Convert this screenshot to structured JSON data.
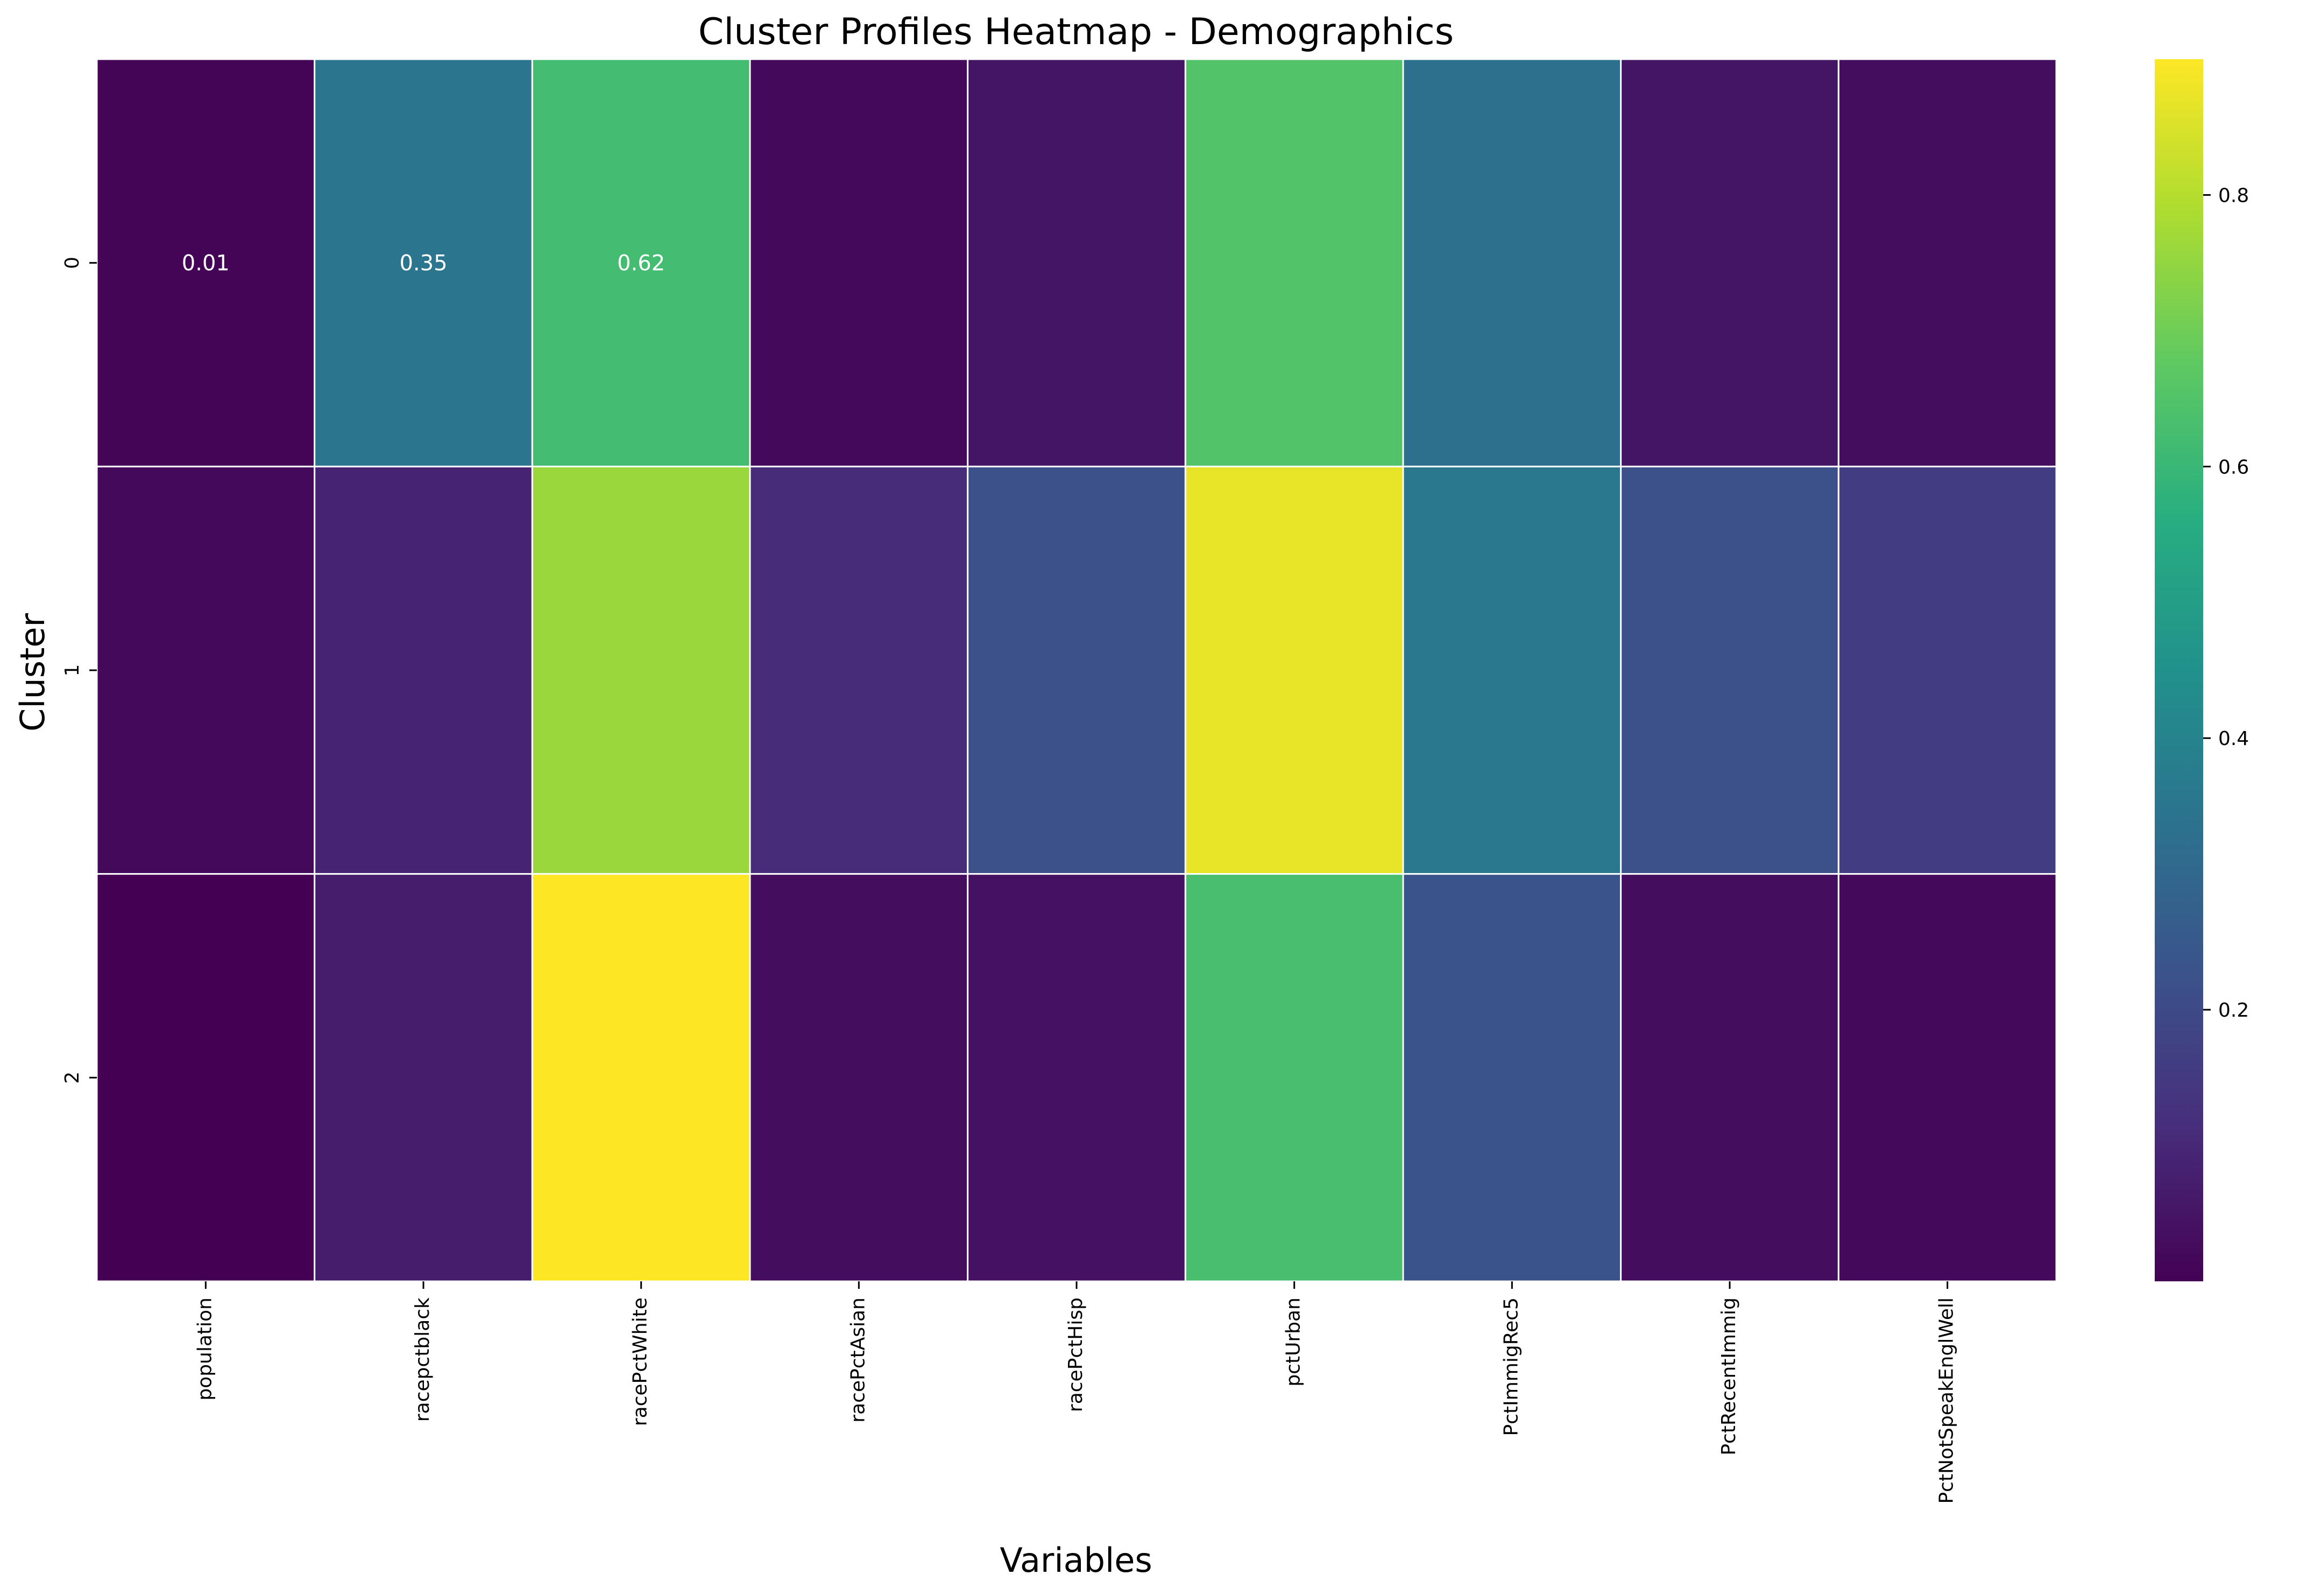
{
  "chart_data": {
    "type": "heatmap",
    "title": "Cluster Profiles Heatmap - Demographics",
    "xlabel": "Variables",
    "ylabel": "Cluster",
    "x": [
      "population",
      "racepctblack",
      "racePctWhite",
      "racePctAsian",
      "racePctHisp",
      "pctUrban",
      "PctImmigRec5",
      "PctRecentImmig",
      "PctNotSpeakEnglWell"
    ],
    "y": [
      "0",
      "1",
      "2"
    ],
    "values": [
      [
        0.01,
        0.35,
        0.62,
        0.02,
        0.05,
        0.65,
        0.33,
        0.05,
        0.03
      ],
      [
        0.02,
        0.09,
        0.76,
        0.11,
        0.22,
        0.87,
        0.36,
        0.22,
        0.16
      ],
      [
        0.0,
        0.07,
        0.9,
        0.03,
        0.04,
        0.63,
        0.23,
        0.03,
        0.02
      ]
    ],
    "annotations": [
      {
        "row": 0,
        "col": 0,
        "text": "0.01"
      },
      {
        "row": 0,
        "col": 1,
        "text": "0.35"
      },
      {
        "row": 0,
        "col": 2,
        "text": "0.62"
      }
    ],
    "colormap": "viridis",
    "vmin": 0.0,
    "vmax": 0.9,
    "colorbar": {
      "ticks": [
        0.2,
        0.4,
        0.6,
        0.8
      ],
      "tick_labels": [
        "0.2",
        "0.4",
        "0.6",
        "0.8"
      ]
    },
    "grid": false
  }
}
